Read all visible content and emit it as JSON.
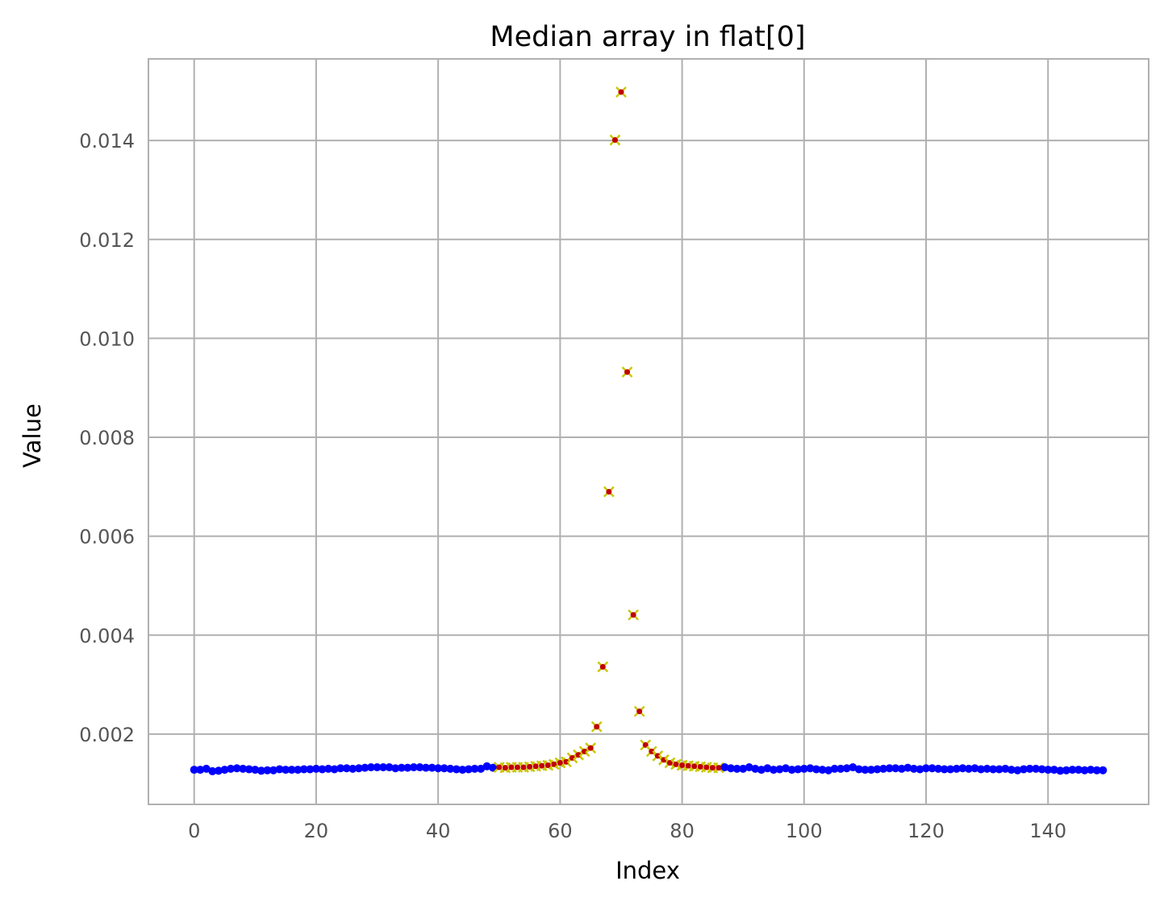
{
  "chart_data": {
    "type": "scatter",
    "title": "Median array in flat[0]",
    "xlabel": "Index",
    "ylabel": "Value",
    "xlim": [
      -7.5,
      156.5
    ],
    "ylim": [
      0.00058,
      0.01565
    ],
    "xticks": [
      0,
      20,
      40,
      60,
      80,
      100,
      120,
      140
    ],
    "yticks": [
      0.002,
      0.004,
      0.006,
      0.008,
      0.01,
      0.012,
      0.014
    ],
    "ytick_labels": [
      "0.002",
      "0.004",
      "0.006",
      "0.008",
      "0.010",
      "0.012",
      "0.014"
    ],
    "grid": true,
    "colors": {
      "all_points": "#0000ff",
      "flagged_points": "#c00000",
      "flagged_marker": "#c8c800",
      "grid": "#b0b0b0",
      "frame": "#b0b0b0"
    },
    "series": [
      {
        "marker": "dot",
        "color": "#0000ff",
        "x": [
          0,
          1,
          2,
          3,
          4,
          5,
          6,
          7,
          8,
          9,
          10,
          11,
          12,
          13,
          14,
          15,
          16,
          17,
          18,
          19,
          20,
          21,
          22,
          23,
          24,
          25,
          26,
          27,
          28,
          29,
          30,
          31,
          32,
          33,
          34,
          35,
          36,
          37,
          38,
          39,
          40,
          41,
          42,
          43,
          44,
          45,
          46,
          47,
          48,
          49,
          50,
          51,
          52,
          53,
          54,
          55,
          56,
          57,
          58,
          59,
          60,
          61,
          62,
          63,
          64,
          65,
          66,
          67,
          68,
          69,
          70,
          71,
          72,
          73,
          74,
          75,
          76,
          77,
          78,
          79,
          80,
          81,
          82,
          83,
          84,
          85,
          86,
          87,
          88,
          89,
          90,
          91,
          92,
          93,
          94,
          95,
          96,
          97,
          98,
          99,
          100,
          101,
          102,
          103,
          104,
          105,
          106,
          107,
          108,
          109,
          110,
          111,
          112,
          113,
          114,
          115,
          116,
          117,
          118,
          119,
          120,
          121,
          122,
          123,
          124,
          125,
          126,
          127,
          128,
          129,
          130,
          131,
          132,
          133,
          134,
          135,
          136,
          137,
          138,
          139,
          140,
          141,
          142,
          143,
          144,
          145,
          146,
          147,
          148,
          149
        ],
        "y": [
          0.00128,
          0.00128,
          0.0013,
          0.00125,
          0.00126,
          0.00128,
          0.0013,
          0.00131,
          0.0013,
          0.00129,
          0.00128,
          0.00126,
          0.00127,
          0.00127,
          0.00129,
          0.00128,
          0.00128,
          0.00128,
          0.00129,
          0.00129,
          0.0013,
          0.00129,
          0.0013,
          0.00129,
          0.00131,
          0.00131,
          0.0013,
          0.00131,
          0.00132,
          0.00133,
          0.00133,
          0.00133,
          0.00133,
          0.00131,
          0.00132,
          0.00132,
          0.00133,
          0.00133,
          0.00132,
          0.00132,
          0.00131,
          0.00131,
          0.0013,
          0.00129,
          0.00128,
          0.00129,
          0.0013,
          0.0013,
          0.00135,
          0.00132,
          0.00133,
          0.00132,
          0.00133,
          0.00133,
          0.00133,
          0.00134,
          0.00135,
          0.00136,
          0.00137,
          0.00139,
          0.00142,
          0.00144,
          0.00152,
          0.00158,
          0.00165,
          0.00172,
          0.00215,
          0.00336,
          0.0069,
          0.01401,
          0.01498,
          0.00932,
          0.00441,
          0.00246,
          0.00178,
          0.00165,
          0.00156,
          0.00148,
          0.00142,
          0.00139,
          0.00137,
          0.00136,
          0.00135,
          0.00134,
          0.00133,
          0.00132,
          0.00132,
          0.00133,
          0.00131,
          0.0013,
          0.0013,
          0.00133,
          0.0013,
          0.00128,
          0.00131,
          0.00128,
          0.00129,
          0.00131,
          0.00128,
          0.00129,
          0.0013,
          0.00131,
          0.00129,
          0.00128,
          0.00127,
          0.0013,
          0.0013,
          0.00131,
          0.00133,
          0.00129,
          0.00128,
          0.00128,
          0.00129,
          0.0013,
          0.00131,
          0.00131,
          0.0013,
          0.00132,
          0.0013,
          0.00129,
          0.00131,
          0.00131,
          0.0013,
          0.00129,
          0.00129,
          0.0013,
          0.00131,
          0.0013,
          0.00131,
          0.00129,
          0.0013,
          0.00129,
          0.00129,
          0.0013,
          0.00128,
          0.00127,
          0.00129,
          0.0013,
          0.0013,
          0.00129,
          0.00128,
          0.00128,
          0.00126,
          0.00127,
          0.00128,
          0.00128,
          0.00127,
          0.00128,
          0.00127,
          0.00127
        ]
      },
      {
        "marker": "x",
        "color": "#c8c800",
        "x_range": [
          50,
          86
        ]
      }
    ]
  }
}
